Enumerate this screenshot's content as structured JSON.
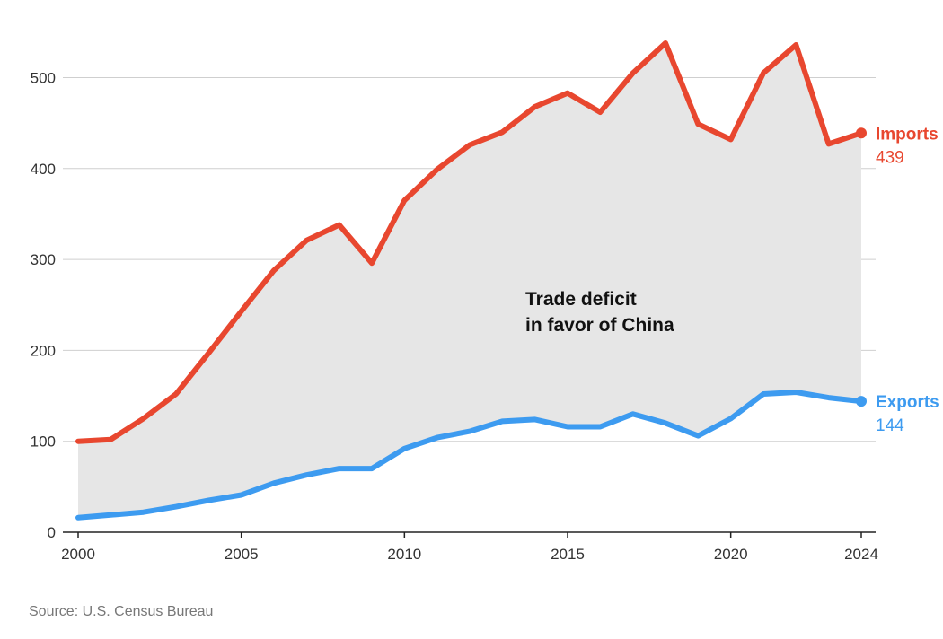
{
  "chart_data": {
    "type": "line",
    "x": [
      2000,
      2001,
      2002,
      2003,
      2004,
      2005,
      2006,
      2007,
      2008,
      2009,
      2010,
      2011,
      2012,
      2013,
      2014,
      2015,
      2016,
      2017,
      2018,
      2019,
      2020,
      2021,
      2022,
      2023,
      2024
    ],
    "series": [
      {
        "name": "Imports",
        "color": "#e8472f",
        "end_label_value": "439",
        "values": [
          100,
          102,
          125,
          152,
          197,
          243,
          288,
          321,
          338,
          296,
          365,
          399,
          426,
          440,
          468,
          483,
          462,
          505,
          538,
          449,
          432,
          505,
          536,
          427,
          439
        ]
      },
      {
        "name": "Exports",
        "color": "#3d9bf0",
        "end_label_value": "144",
        "values": [
          16,
          19,
          22,
          28,
          35,
          41,
          54,
          63,
          70,
          70,
          92,
          104,
          111,
          122,
          124,
          116,
          116,
          130,
          120,
          106,
          125,
          152,
          154,
          148,
          144
        ]
      }
    ],
    "fill_between": {
      "color": "#e6e6e6"
    },
    "annotation": {
      "lines": [
        "Trade deficit",
        "in favor of China"
      ],
      "x": 2014.5,
      "y": 260
    },
    "x_ticks": [
      2000,
      2005,
      2010,
      2015,
      2020,
      2024
    ],
    "y_ticks": [
      0,
      100,
      200,
      300,
      400,
      500
    ],
    "xlim": [
      2000,
      2024
    ],
    "ylim": [
      0,
      540
    ],
    "grid": "horizontal",
    "title": "",
    "xlabel": "",
    "ylabel": ""
  },
  "source": "Source: U.S. Census Bureau"
}
